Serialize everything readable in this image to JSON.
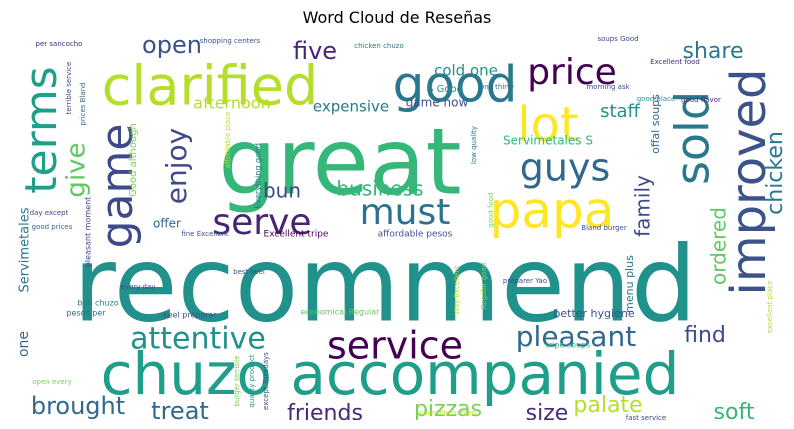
{
  "title": "Word Cloud de Reseñas",
  "chart_data": {
    "type": "wordcloud",
    "title": "Word Cloud de Reseñas",
    "colormap": "viridis",
    "background": "#ffffff",
    "words": [
      {
        "text": "recommend",
        "weight": 100,
        "color": "#21918c"
      },
      {
        "text": "great",
        "weight": 88,
        "color": "#35b779"
      },
      {
        "text": "chuzo accompanied",
        "weight": 62,
        "color": "#1f9e89"
      },
      {
        "text": "clarified",
        "weight": 52,
        "color": "#b5de2b"
      },
      {
        "text": "good",
        "weight": 44,
        "color": "#2a788e"
      },
      {
        "text": "lot",
        "weight": 44,
        "color": "#fde725"
      },
      {
        "text": "papa",
        "weight": 44,
        "color": "#fde725"
      },
      {
        "text": "terms",
        "weight": 42,
        "color": "#1f9e89"
      },
      {
        "text": "improved",
        "weight": 42,
        "color": "#3b528b"
      },
      {
        "text": "sold",
        "weight": 42,
        "color": "#2a788e"
      },
      {
        "text": "game",
        "weight": 40,
        "color": "#3e4989"
      },
      {
        "text": "service",
        "weight": 36,
        "color": "#440154"
      },
      {
        "text": "guys",
        "weight": 36,
        "color": "#31688e"
      },
      {
        "text": "must",
        "weight": 34,
        "color": "#2c728e"
      },
      {
        "text": "serve",
        "weight": 34,
        "color": "#482475"
      },
      {
        "text": "price",
        "weight": 34,
        "color": "#440154"
      },
      {
        "text": "attentive",
        "weight": 28,
        "color": "#21918c"
      },
      {
        "text": "pleasant",
        "weight": 26,
        "color": "#31688e"
      },
      {
        "text": "enjoy",
        "weight": 26,
        "color": "#3e4989"
      },
      {
        "text": "give",
        "weight": 24,
        "color": "#5ec962"
      },
      {
        "text": "chicken",
        "weight": 22,
        "color": "#2a788e"
      },
      {
        "text": "treat",
        "weight": 22,
        "color": "#31688e"
      },
      {
        "text": "brought",
        "weight": 22,
        "color": "#31688e"
      },
      {
        "text": "friends",
        "weight": 20,
        "color": "#482878"
      },
      {
        "text": "pizzas",
        "weight": 20,
        "color": "#7ad151"
      },
      {
        "text": "palate",
        "weight": 20,
        "color": "#b5de2b"
      },
      {
        "text": "soft",
        "weight": 20,
        "color": "#35b779"
      },
      {
        "text": "size",
        "weight": 20,
        "color": "#472c7a"
      },
      {
        "text": "find",
        "weight": 20,
        "color": "#3e4989"
      },
      {
        "text": "share",
        "weight": 20,
        "color": "#2a788e"
      },
      {
        "text": "five",
        "weight": 20,
        "color": "#482475"
      },
      {
        "text": "open",
        "weight": 20,
        "color": "#3b528b"
      },
      {
        "text": "ordered",
        "weight": 19,
        "color": "#5ec962"
      },
      {
        "text": "family",
        "weight": 19,
        "color": "#3e4989"
      },
      {
        "text": "business",
        "weight": 18,
        "color": "#35b779"
      },
      {
        "text": "bun",
        "weight": 18,
        "color": "#3e4989"
      },
      {
        "text": "staff",
        "weight": 16,
        "color": "#21918c"
      },
      {
        "text": "afternoon",
        "weight": 16,
        "color": "#b5de2b"
      },
      {
        "text": "expensive",
        "weight": 14,
        "color": "#2a788e"
      },
      {
        "text": "cold one",
        "weight": 14,
        "color": "#21918c"
      },
      {
        "text": "one",
        "weight": 14,
        "color": "#31688e"
      },
      {
        "text": "Servimetales S",
        "weight": 12,
        "color": "#35b779"
      },
      {
        "text": "offer",
        "weight": 12,
        "color": "#31688e"
      },
      {
        "text": "menu plus",
        "weight": 10,
        "color": "#2a788e"
      },
      {
        "text": "offal soups",
        "weight": 10,
        "color": "#31688e"
      },
      {
        "text": "game now",
        "weight": 10,
        "color": "#3b528b"
      },
      {
        "text": "better hygiene",
        "weight": 10,
        "color": "#3b528b"
      },
      {
        "text": "Good although",
        "weight": 10,
        "color": "#7ad151"
      },
      {
        "text": "S Good",
        "weight": 10,
        "color": "#21918c"
      },
      {
        "text": "Servimetales",
        "weight": 10,
        "color": "#2a788e"
      },
      {
        "text": "Excellent tripe",
        "weight": 9,
        "color": "#440154"
      },
      {
        "text": "affordable pesos",
        "weight": 9,
        "color": "#3b528b"
      },
      {
        "text": "Everything good",
        "weight": 8,
        "color": "#2a788e"
      },
      {
        "text": "economical Regular",
        "weight": 8,
        "color": "#5ec962"
      },
      {
        "text": "tripe soups",
        "weight": 8,
        "color": "#35b779"
      },
      {
        "text": "keel preparer",
        "weight": 8,
        "color": "#3b528b"
      },
      {
        "text": "bun chuzo",
        "weight": 8,
        "color": "#2a788e"
      },
      {
        "text": "pesos per",
        "weight": 8,
        "color": "#31688e"
      },
      {
        "text": "pleasant moment",
        "weight": 8,
        "color": "#3e4989"
      },
      {
        "text": "best keel",
        "weight": 7,
        "color": "#3b528b"
      },
      {
        "text": "every day",
        "weight": 7,
        "color": "#3b528b"
      },
      {
        "text": "shopping centers",
        "weight": 7,
        "color": "#3b528b"
      },
      {
        "text": "per sancocho",
        "weight": 7,
        "color": "#482878"
      },
      {
        "text": "chicken chuzo",
        "weight": 7,
        "color": "#2a788e"
      },
      {
        "text": "soups Good",
        "weight": 7,
        "color": "#3e4989"
      },
      {
        "text": "Excellent food",
        "weight": 7,
        "color": "#482878"
      },
      {
        "text": "morning ask",
        "weight": 7,
        "color": "#3e4989"
      },
      {
        "text": "good place",
        "weight": 7,
        "color": "#21918c"
      },
      {
        "text": "one thirty",
        "weight": 7,
        "color": "#31688e"
      },
      {
        "text": "low quality",
        "weight": 7,
        "color": "#2a788e"
      },
      {
        "text": "good food",
        "weight": 7,
        "color": "#7ad151"
      },
      {
        "text": "good flavor",
        "weight": 7,
        "color": "#482878"
      },
      {
        "text": "preparer Yao",
        "weight": 7,
        "color": "#3e4989"
      },
      {
        "text": "Bland burger",
        "weight": 7,
        "color": "#3b528b"
      },
      {
        "text": "day except",
        "weight": 7,
        "color": "#3e4989"
      },
      {
        "text": "good prices",
        "weight": 7,
        "color": "#31688e"
      },
      {
        "text": "fine Excellent",
        "weight": 7,
        "color": "#3b528b"
      },
      {
        "text": "open every",
        "weight": 7,
        "color": "#7ad151"
      },
      {
        "text": "burger terrible",
        "weight": 7,
        "color": "#7ad151"
      },
      {
        "text": "quality product",
        "weight": 7,
        "color": "#21918c"
      },
      {
        "text": "except Tuesdays",
        "weight": 7,
        "color": "#3b528b"
      },
      {
        "text": "clientele named",
        "weight": 7,
        "color": "#b5de2b"
      },
      {
        "text": "fast service",
        "weight": 7,
        "color": "#3e4989"
      },
      {
        "text": "excellent place",
        "weight": 7,
        "color": "#b5de2b"
      },
      {
        "text": "terrible service",
        "weight": 7,
        "color": "#3e4989"
      },
      {
        "text": "prices Bland",
        "weight": 7,
        "color": "#31688e"
      },
      {
        "text": "affordable place",
        "weight": 7,
        "color": "#b5de2b"
      },
      {
        "text": "Regular good",
        "weight": 7,
        "color": "#7ad151"
      },
      {
        "text": "Way Excellent",
        "weight": 7,
        "color": "#b5de2b"
      }
    ]
  }
}
